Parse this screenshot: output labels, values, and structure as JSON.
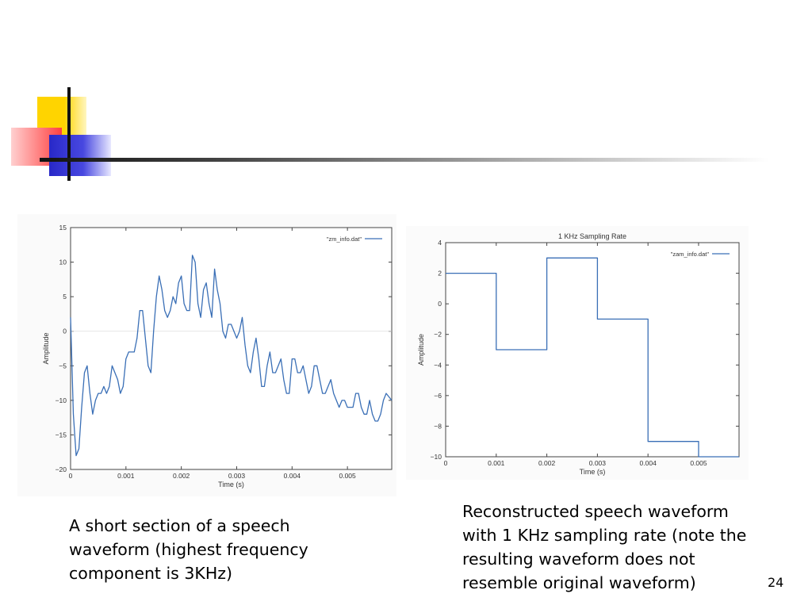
{
  "slide_number": "24",
  "captions": {
    "left": "A short section of a speech\nwaveform (highest frequency\ncomponent is 3KHz)",
    "right": "Reconstructed speech waveform\nwith 1 KHz sampling rate (note the\nresulting waveform does not\nresemble original waveform)"
  },
  "colors": {
    "line": "#3a6fb6",
    "axis": "#444444",
    "frame_bg": "#ffffff"
  },
  "chart_data": [
    {
      "type": "line",
      "title": "",
      "xlabel": "Time (s)",
      "ylabel": "Amplitude",
      "xlim": [
        0,
        0.0058
      ],
      "ylim": [
        -20,
        15
      ],
      "xticks": [
        0,
        0.001,
        0.002,
        0.003,
        0.004,
        0.005
      ],
      "xtick_labels": [
        "0",
        "0.001",
        "0.002",
        "0.003",
        "0.004",
        "0.005"
      ],
      "yticks": [
        15,
        10,
        5,
        0,
        -5,
        -10,
        -15,
        -20
      ],
      "ytick_labels": [
        "15",
        "10",
        "5",
        "0",
        "−5",
        "−10",
        "−15",
        "−20"
      ],
      "grid": false,
      "legend": "top-right",
      "series": [
        {
          "name": "\"zm_info.dat\"",
          "x": [
            0,
            5e-05,
            0.0001,
            0.00015,
            0.0002,
            0.00025,
            0.0003,
            0.00035,
            0.0004,
            0.00045,
            0.0005,
            0.00055,
            0.0006,
            0.00065,
            0.0007,
            0.00075,
            0.0008,
            0.00085,
            0.0009,
            0.00095,
            0.001,
            0.00105,
            0.0011,
            0.00115,
            0.0012,
            0.00125,
            0.0013,
            0.00135,
            0.0014,
            0.00145,
            0.0015,
            0.00155,
            0.0016,
            0.00165,
            0.0017,
            0.00175,
            0.0018,
            0.00185,
            0.0019,
            0.00195,
            0.002,
            0.00205,
            0.0021,
            0.00215,
            0.0022,
            0.00225,
            0.0023,
            0.00235,
            0.0024,
            0.00245,
            0.0025,
            0.00255,
            0.0026,
            0.00265,
            0.0027,
            0.00275,
            0.0028,
            0.00285,
            0.0029,
            0.00295,
            0.003,
            0.00305,
            0.0031,
            0.00315,
            0.0032,
            0.00325,
            0.0033,
            0.00335,
            0.0034,
            0.00345,
            0.0035,
            0.00355,
            0.0036,
            0.00365,
            0.0037,
            0.00375,
            0.0038,
            0.00385,
            0.0039,
            0.00395,
            0.004,
            0.00405,
            0.0041,
            0.00415,
            0.0042,
            0.00425,
            0.0043,
            0.00435,
            0.0044,
            0.00445,
            0.0045,
            0.00455,
            0.0046,
            0.00465,
            0.0047,
            0.00475,
            0.0048,
            0.00485,
            0.0049,
            0.00495,
            0.005,
            0.00505,
            0.0051,
            0.00515,
            0.0052,
            0.00525,
            0.0053,
            0.00535,
            0.0054,
            0.00545,
            0.0055,
            0.00555,
            0.0056,
            0.00565,
            0.0057,
            0.0058
          ],
          "y": [
            2,
            -12,
            -18,
            -17,
            -11,
            -6,
            -5,
            -9,
            -12,
            -10,
            -9,
            -9,
            -8,
            -9,
            -8,
            -5,
            -6,
            -7,
            -9,
            -8,
            -4,
            -3,
            -3,
            -3,
            -1,
            3,
            3,
            -1,
            -5,
            -6,
            0,
            5,
            8,
            6,
            3,
            2,
            3,
            5,
            4,
            7,
            8,
            4,
            3,
            3,
            11,
            10,
            4,
            2,
            6,
            7,
            4,
            2,
            9,
            6,
            4,
            0,
            -1,
            1,
            1,
            0,
            -1,
            0,
            2,
            -2,
            -5,
            -6,
            -3,
            -1,
            -4,
            -8,
            -8,
            -5,
            -3,
            -6,
            -6,
            -5,
            -4,
            -7,
            -9,
            -9,
            -4,
            -4,
            -6,
            -6,
            -5,
            -7,
            -9,
            -8,
            -5,
            -5,
            -7,
            -9,
            -9,
            -8,
            -7,
            -9,
            -10,
            -11,
            -10,
            -10,
            -11,
            -11,
            -11,
            -9,
            -9,
            -11,
            -12,
            -12,
            -10,
            -12,
            -13,
            -13,
            -12,
            -10,
            -9,
            -10
          ]
        }
      ]
    },
    {
      "type": "line",
      "title": "1 KHz Sampling Rate",
      "xlabel": "Time (s)",
      "ylabel": "Amplitude",
      "xlim": [
        0,
        0.0058
      ],
      "ylim": [
        -10,
        4
      ],
      "xticks": [
        0,
        0.001,
        0.002,
        0.003,
        0.004,
        0.005
      ],
      "xtick_labels": [
        "0",
        "0.001",
        "0.002",
        "0.003",
        "0.004",
        "0.005"
      ],
      "yticks": [
        4,
        2,
        0,
        -2,
        -4,
        -6,
        -8,
        -10
      ],
      "ytick_labels": [
        "4",
        "2",
        "0",
        "−2",
        "−4",
        "−6",
        "−8",
        "−10"
      ],
      "grid": false,
      "legend": "top-right",
      "series": [
        {
          "name": "\"zam_info.dat\"",
          "step": true,
          "x": [
            0,
            0.001,
            0.001,
            0.002,
            0.002,
            0.003,
            0.003,
            0.004,
            0.004,
            0.005,
            0.005,
            0.0058
          ],
          "y": [
            2,
            2,
            -3,
            -3,
            3,
            3,
            -1,
            -1,
            -9,
            -9,
            -10,
            -10
          ]
        }
      ]
    }
  ]
}
